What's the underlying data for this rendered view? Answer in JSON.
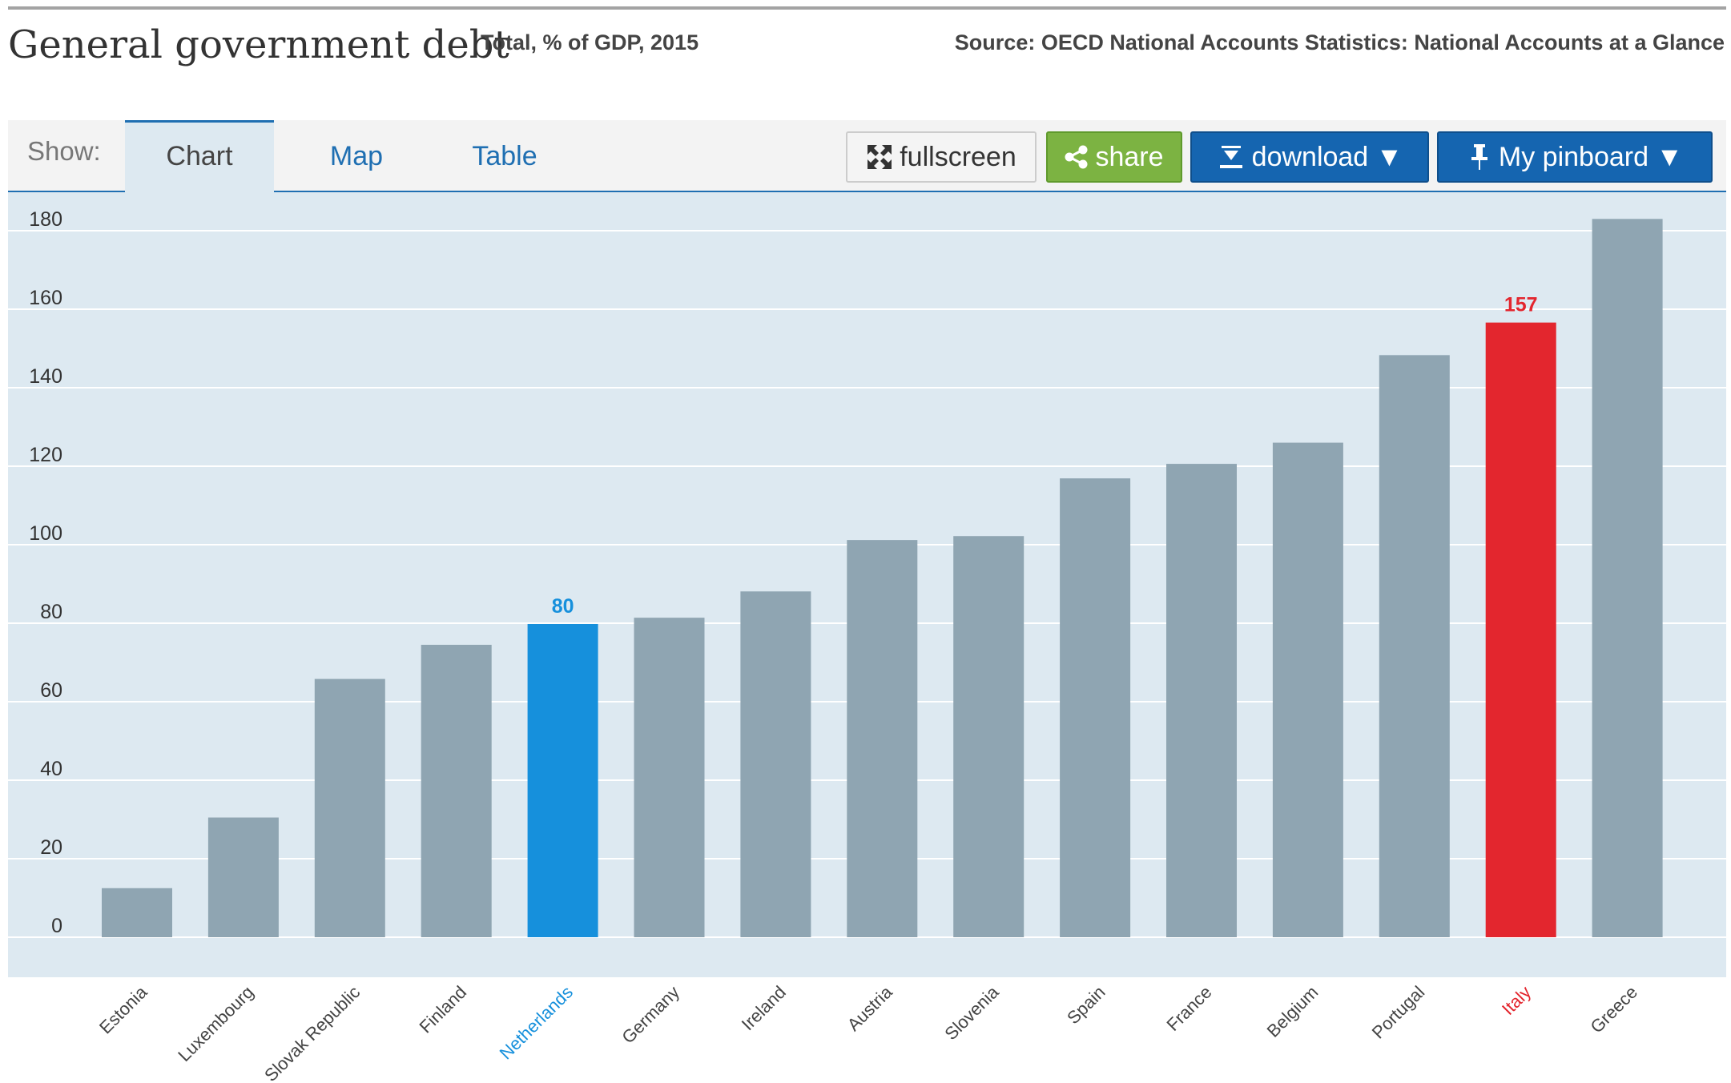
{
  "header": {
    "title": "General government debt",
    "subtitle": "Total, % of GDP, 2015",
    "source": "Source: OECD National Accounts Statistics: National Accounts at a Glance"
  },
  "toolbar": {
    "show_label": "Show:",
    "tabs": [
      {
        "label": "Chart",
        "active": true
      },
      {
        "label": "Map",
        "active": false
      },
      {
        "label": "Table",
        "active": false
      }
    ],
    "fullscreen_label": "fullscreen",
    "share_label": "share",
    "download_label": "download ▼",
    "pinboard_label": "My pinboard ▼"
  },
  "colors": {
    "bar_default": "#8fa5b2",
    "highlight_blue": "#1690dc",
    "highlight_red": "#e3262e",
    "plot_background": "#dde9f1",
    "grid": "#ffffff"
  },
  "icons": {
    "fullscreen": "expand-arrows-icon",
    "share": "share-icon",
    "download": "download-arrow-icon",
    "pinboard": "pushpin-icon"
  },
  "chart_data": {
    "type": "bar",
    "categories": [
      "Estonia",
      "Luxembourg",
      "Slovak Republic",
      "Finland",
      "Netherlands",
      "Germany",
      "Ireland",
      "Austria",
      "Slovenia",
      "Spain",
      "France",
      "Belgium",
      "Portugal",
      "Italy",
      "Greece"
    ],
    "values": [
      12.5,
      30.5,
      65.8,
      74.5,
      79.8,
      81.4,
      88.1,
      101.2,
      102.2,
      116.9,
      120.6,
      126.0,
      148.3,
      156.6,
      183.0
    ],
    "highlights": [
      {
        "category": "Netherlands",
        "color": "blue",
        "label": "80"
      },
      {
        "category": "Italy",
        "color": "red",
        "label": "157"
      }
    ],
    "ylim": [
      0,
      180
    ],
    "yticks": [
      0,
      20,
      40,
      60,
      80,
      100,
      120,
      140,
      160,
      180
    ],
    "grid": true,
    "legend": "none"
  }
}
